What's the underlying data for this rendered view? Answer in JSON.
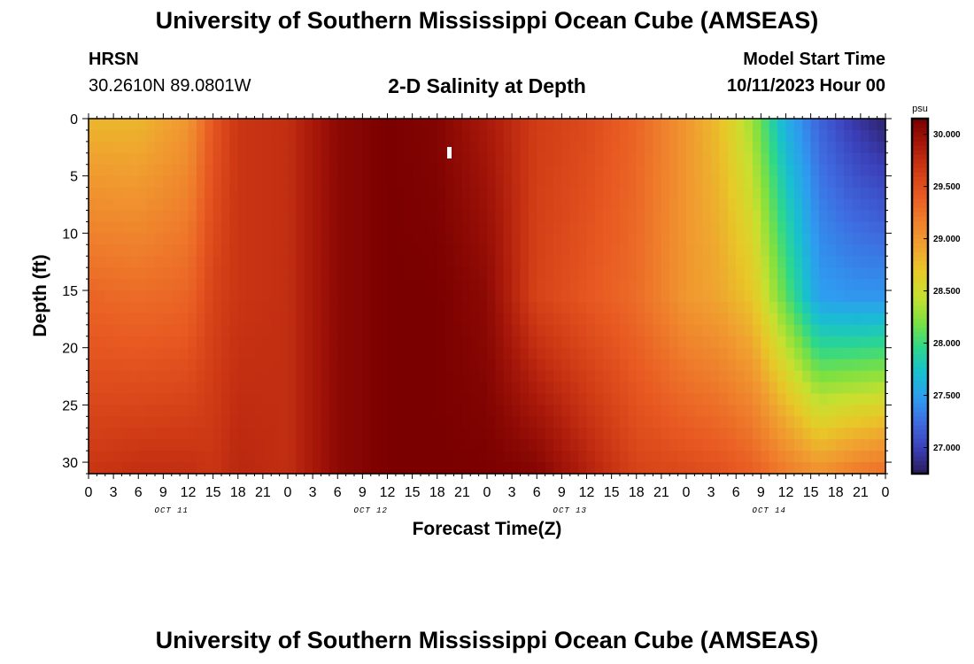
{
  "header": {
    "title": "University of Southern Mississippi Ocean Cube (AMSEAS)",
    "station": "HRSN",
    "coords": "30.2610N  89.0801W",
    "subtitle": "2-D Salinity at Depth",
    "start_label": "Model Start Time",
    "start_value": "10/11/2023 Hour 00"
  },
  "footer": {
    "title": "University of Southern Mississippi Ocean Cube (AMSEAS)"
  },
  "chart_data": {
    "type": "heatmap",
    "title": "2-D Salinity at Depth",
    "xlabel": "Forecast Time(Z)",
    "ylabel": "Depth (ft)",
    "x_range_hours": [
      0,
      96
    ],
    "x_tick_labels": [
      "0",
      "3",
      "6",
      "9",
      "12",
      "15",
      "18",
      "21",
      "0",
      "3",
      "6",
      "9",
      "12",
      "15",
      "18",
      "21",
      "0",
      "3",
      "6",
      "9",
      "12",
      "15",
      "18",
      "21",
      "0",
      "3",
      "6",
      "9",
      "12",
      "15",
      "18",
      "21",
      "0"
    ],
    "day_labels": [
      "OCT 11",
      "OCT 12",
      "OCT 13",
      "OCT 14"
    ],
    "y_range_ft": [
      0,
      31
    ],
    "y_ticks": [
      0,
      5,
      10,
      15,
      20,
      25,
      30
    ],
    "colorbar": {
      "unit": "psu",
      "min": 26.75,
      "max": 30.15,
      "tick_values": [
        27.0,
        27.5,
        28.0,
        28.5,
        29.0,
        29.5,
        30.0
      ],
      "tick_labels": [
        "27.000",
        "27.500",
        "28.000",
        "28.500",
        "29.000",
        "29.500",
        "30.000"
      ],
      "colors": [
        "#2a1a55",
        "#3b3fb8",
        "#3f6ae0",
        "#2e9cf0",
        "#18c0d0",
        "#2ed88a",
        "#7ee040",
        "#c8e030",
        "#e8c828",
        "#f0a030",
        "#ef7e2c",
        "#e85a22",
        "#cf3a15",
        "#a8180a",
        "#7a0000"
      ]
    },
    "salinity_psu_surface_profile": {
      "hours": [
        0,
        6,
        12,
        15,
        18,
        24,
        30,
        36,
        42,
        48,
        54,
        60,
        66,
        72,
        76,
        80,
        84,
        88,
        92,
        96
      ],
      "surface": [
        28.8,
        28.8,
        29.0,
        29.45,
        29.7,
        29.75,
        30.05,
        30.15,
        30.1,
        29.9,
        29.65,
        29.55,
        29.35,
        29.0,
        28.75,
        28.3,
        27.6,
        27.2,
        26.95,
        26.8
      ],
      "mid_depth": [
        29.35,
        29.3,
        29.35,
        29.6,
        29.7,
        29.75,
        30.05,
        30.15,
        30.15,
        30.05,
        29.6,
        29.45,
        29.3,
        29.0,
        28.9,
        28.7,
        28.1,
        27.5,
        27.45,
        27.45
      ],
      "bottom": [
        29.7,
        29.75,
        29.75,
        29.7,
        29.8,
        29.75,
        30.05,
        30.15,
        30.15,
        30.15,
        30.1,
        29.85,
        29.6,
        29.55,
        29.5,
        29.4,
        29.2,
        29.05,
        29.2,
        29.3
      ]
    }
  }
}
